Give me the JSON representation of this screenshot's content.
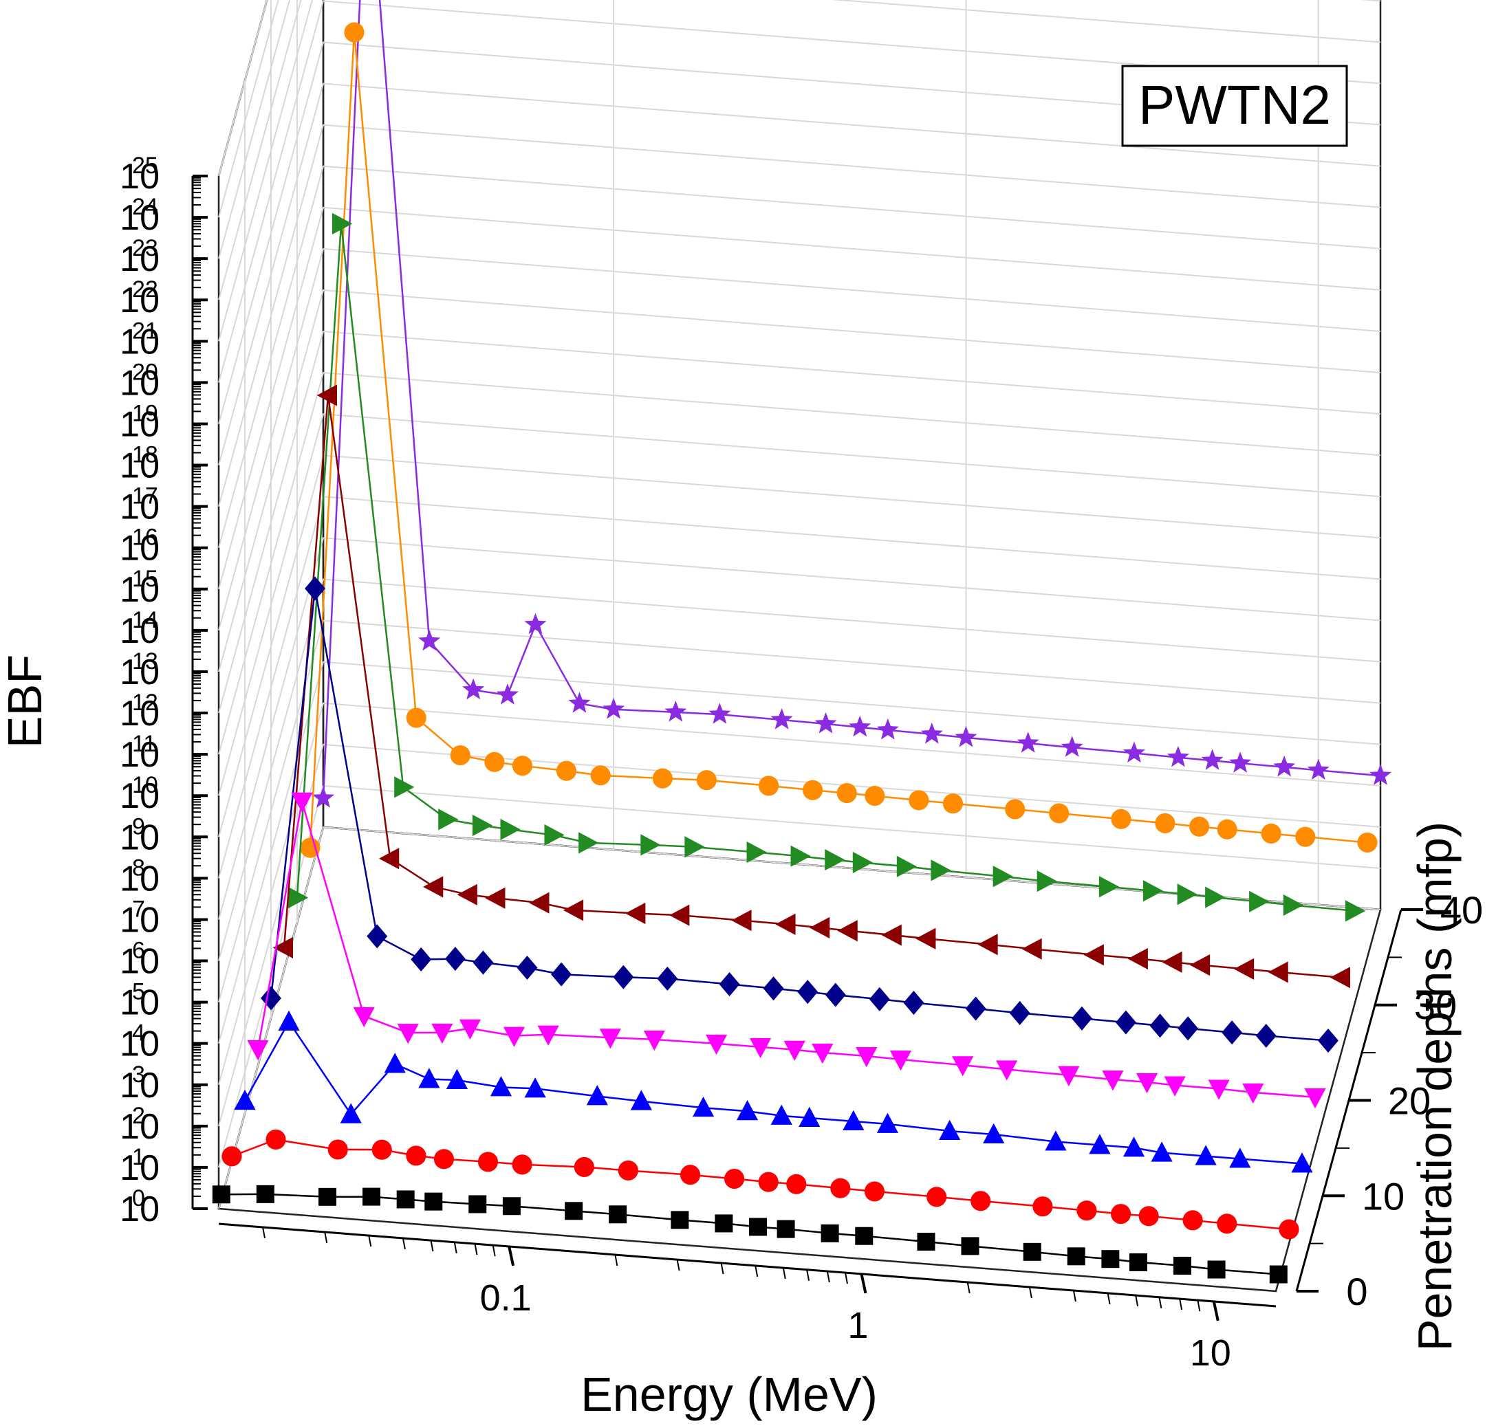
{
  "chart_data": {
    "type": "line",
    "projection": "3d-waterfall",
    "annotation": "PWTN2",
    "xlabel": "Energy (MeV)",
    "ylabel": "EBF",
    "zlabel": "Penetration depths (mfp)",
    "x_scale": "log",
    "y_scale": "log",
    "xlim": [
      0.015,
      15
    ],
    "ylim": [
      1,
      1e+25
    ],
    "zlim": [
      0,
      40
    ],
    "x_ticks": [
      "0.1",
      "1",
      "10"
    ],
    "y_ticks": [
      "10",
      "10",
      "10",
      "10",
      "10",
      "10",
      "10",
      "10",
      "10",
      "10",
      "10",
      "10",
      "10",
      "10",
      "10",
      "10",
      "10",
      "10",
      "10",
      "10",
      "10",
      "10",
      "10",
      "10",
      "10",
      "10"
    ],
    "y_tick_exponents": [
      "0",
      "1",
      "2",
      "3",
      "4",
      "5",
      "6",
      "7",
      "8",
      "9",
      "10",
      "11",
      "12",
      "13",
      "14",
      "15",
      "16",
      "17",
      "18",
      "19",
      "20",
      "21",
      "22",
      "23",
      "24",
      "25"
    ],
    "z_ticks": [
      "0",
      "10",
      "20",
      "30",
      "40"
    ],
    "grid": true,
    "legend": false,
    "x": [
      0.015,
      0.02,
      0.03,
      0.04,
      0.05,
      0.06,
      0.08,
      0.1,
      0.15,
      0.2,
      0.3,
      0.4,
      0.5,
      0.6,
      0.8,
      1,
      1.5,
      2,
      3,
      4,
      5,
      6,
      8,
      10,
      15
    ],
    "series": [
      {
        "depth": 1,
        "marker": "square",
        "color": "#000000",
        "values": [
          1.3,
          1.6,
          1.8,
          2.2,
          2.2,
          2.2,
          2.3,
          2.4,
          2.4,
          2.4,
          2.3,
          2.3,
          2.2,
          2.2,
          2.1,
          2.1,
          2.0,
          1.9,
          1.8,
          1.7,
          1.7,
          1.6,
          1.6,
          1.5,
          1.5
        ]
      },
      {
        "depth": 5,
        "marker": "circle",
        "color": "#ff0000",
        "values": [
          1.3,
          4.0,
          3.0,
          3.6,
          3.0,
          2.8,
          2.9,
          2.9,
          3.3,
          3.3,
          3.4,
          3.3,
          3.2,
          3.2,
          3.1,
          3.0,
          2.9,
          2.8,
          2.7,
          2.6,
          2.5,
          2.5,
          2.4,
          2.3,
          2.2
        ]
      },
      {
        "depth": 10,
        "marker": "triangle-up",
        "color": "#0000ff",
        "values": [
          2.0,
          200,
          1.5,
          30,
          15,
          16,
          13,
          14,
          12,
          11,
          10,
          10,
          9,
          9,
          9,
          9,
          8,
          8,
          7,
          7,
          7,
          6,
          6,
          6,
          6
        ]
      },
      {
        "depth": 15,
        "marker": "triangle-down",
        "color": "#ff00ff",
        "values": [
          2.5,
          3000000.0,
          25,
          12,
          14,
          20,
          16,
          20,
          22,
          24,
          25,
          25,
          25,
          24,
          24,
          23,
          22,
          21,
          20,
          19,
          19,
          18,
          18,
          17,
          17
        ]
      },
      {
        "depth": 20,
        "marker": "diamond",
        "color": "#00008b",
        "values": [
          3.0,
          30000000000.0,
          150,
          50,
          60,
          55,
          50,
          40,
          45,
          50,
          48,
          46,
          44,
          42,
          40,
          38,
          36,
          34,
          33,
          32,
          31,
          30,
          29,
          28,
          28
        ]
      },
      {
        "depth": 25,
        "marker": "triangle-left",
        "color": "#8b0000",
        "values": [
          3.5,
          100000000000000.0,
          800,
          200,
          150,
          140,
          130,
          100,
          110,
          120,
          118,
          115,
          110,
          105,
          100,
          95,
          90,
          85,
          80,
          78,
          75,
          72,
          70,
          68,
          66
        ]
      },
      {
        "depth": 30,
        "marker": "triangle-right",
        "color": "#228b22",
        "values": [
          4.0,
          1e+17,
          3000,
          600,
          500,
          450,
          400,
          300,
          350,
          380,
          370,
          360,
          340,
          330,
          320,
          300,
          280,
          260,
          250,
          240,
          230,
          220,
          210,
          200,
          190
        ]
      },
      {
        "depth": 35,
        "marker": "circle",
        "color": "#ff8c00",
        "values": [
          4.5,
          3e+20,
          10000.0,
          1500,
          1200,
          1100,
          1000,
          900,
          1000,
          1100,
          1050,
          1000,
          980,
          950,
          900,
          870,
          830,
          800,
          760,
          730,
          700,
          680,
          650,
          630,
          600
        ]
      },
      {
        "depth": 40,
        "marker": "star",
        "color": "#8a2be2",
        "values": [
          5.0,
          1e+24,
          50000.0,
          4000,
          3500,
          200000.0,
          3000,
          2500,
          2800,
          3000,
          2900,
          2800,
          2700,
          2600,
          2500,
          2400,
          2300,
          2200,
          2100,
          2000,
          1950,
          1900,
          1850,
          1800,
          1750
        ]
      }
    ]
  }
}
